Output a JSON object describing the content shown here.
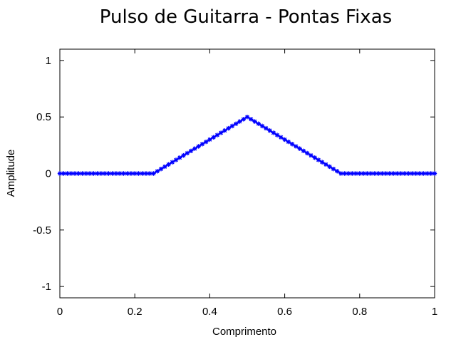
{
  "chart_data": {
    "type": "line",
    "title": "Pulso de Guitarra - Pontas Fixas",
    "xlabel": "Comprimento",
    "ylabel": "Amplitude",
    "xlim": [
      0,
      1
    ],
    "ylim": [
      -1.1,
      1.1
    ],
    "xticks": [
      {
        "value": 0,
        "label": "0"
      },
      {
        "value": 0.2,
        "label": "0.2"
      },
      {
        "value": 0.4,
        "label": "0.4"
      },
      {
        "value": 0.6,
        "label": "0.6"
      },
      {
        "value": 0.8,
        "label": "0.8"
      },
      {
        "value": 1,
        "label": "1"
      }
    ],
    "yticks": [
      {
        "value": 1,
        "label": "1"
      },
      {
        "value": 0.5,
        "label": "0.5"
      },
      {
        "value": 0,
        "label": "0"
      },
      {
        "value": -0.5,
        "label": "-0.5"
      },
      {
        "value": -1,
        "label": "-1"
      }
    ],
    "grid": false,
    "legend": false,
    "series": [
      {
        "color": "#0000ff",
        "marker": "star",
        "x": [
          0,
          0.01,
          0.02,
          0.03,
          0.04,
          0.05,
          0.06,
          0.07,
          0.08,
          0.09,
          0.1,
          0.11,
          0.12,
          0.13,
          0.14,
          0.15,
          0.16,
          0.17,
          0.18,
          0.19,
          0.2,
          0.21,
          0.22,
          0.23,
          0.24,
          0.25,
          0.26,
          0.27,
          0.28,
          0.29,
          0.3,
          0.31,
          0.32,
          0.33,
          0.34,
          0.35,
          0.36,
          0.37,
          0.38,
          0.39,
          0.4,
          0.41,
          0.42,
          0.43,
          0.44,
          0.45,
          0.46,
          0.47,
          0.48,
          0.49,
          0.5,
          0.51,
          0.52,
          0.53,
          0.54,
          0.55,
          0.56,
          0.57,
          0.58,
          0.59,
          0.6,
          0.61,
          0.62,
          0.63,
          0.64,
          0.65,
          0.66,
          0.67,
          0.68,
          0.69,
          0.7,
          0.71,
          0.72,
          0.73,
          0.74,
          0.75,
          0.76,
          0.77,
          0.78,
          0.79,
          0.8,
          0.81,
          0.82,
          0.83,
          0.84,
          0.85,
          0.86,
          0.87,
          0.88,
          0.89,
          0.9,
          0.91,
          0.92,
          0.93,
          0.94,
          0.95,
          0.96,
          0.97,
          0.98,
          0.99,
          1
        ],
        "y": [
          0,
          0,
          0,
          0,
          0,
          0,
          0,
          0,
          0,
          0,
          0,
          0,
          0,
          0,
          0,
          0,
          0,
          0,
          0,
          0,
          0,
          0,
          0,
          0,
          0,
          0,
          0.02,
          0.04,
          0.06,
          0.08,
          0.1,
          0.12,
          0.14,
          0.16,
          0.18,
          0.2,
          0.22,
          0.24,
          0.26,
          0.28,
          0.3,
          0.32,
          0.34,
          0.36,
          0.38,
          0.4,
          0.42,
          0.44,
          0.46,
          0.48,
          0.5,
          0.48,
          0.46,
          0.44,
          0.42,
          0.4,
          0.38,
          0.36,
          0.34,
          0.32,
          0.3,
          0.28,
          0.26,
          0.24,
          0.22,
          0.2,
          0.18,
          0.16,
          0.14,
          0.12,
          0.1,
          0.08,
          0.06,
          0.04,
          0.02,
          0,
          0,
          0,
          0,
          0,
          0,
          0,
          0,
          0,
          0,
          0,
          0,
          0,
          0,
          0,
          0,
          0,
          0,
          0,
          0,
          0,
          0,
          0,
          0,
          0,
          0
        ]
      }
    ]
  }
}
